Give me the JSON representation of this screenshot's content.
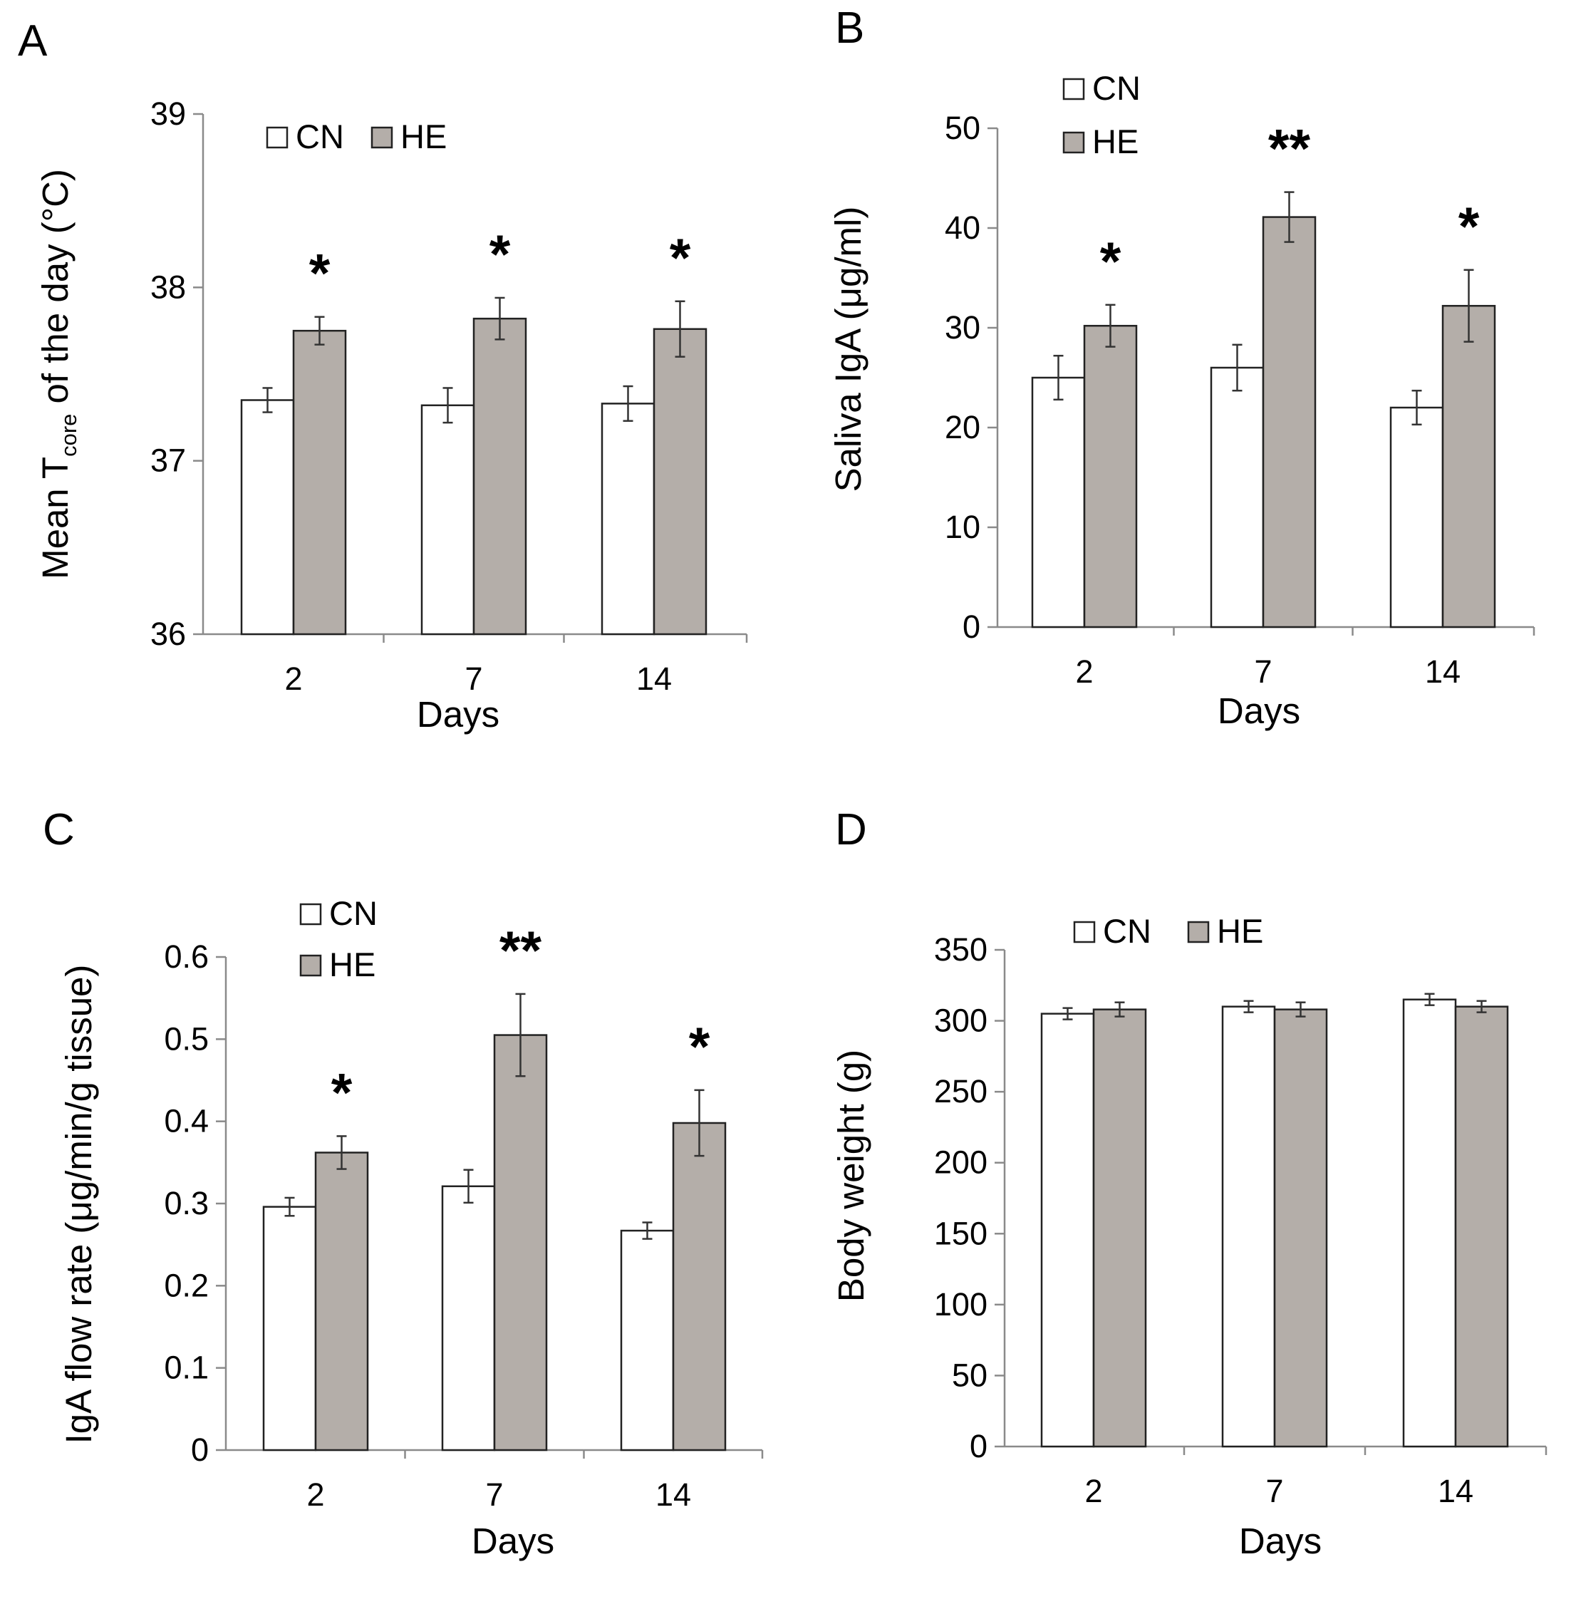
{
  "figure": {
    "description_panels": [
      "A",
      "B",
      "C",
      "D"
    ]
  },
  "colors": {
    "CN": "#ffffff",
    "HE": "#b4aea9",
    "axis": "#8a8a8a",
    "outline": "#222222"
  },
  "chart_data": [
    {
      "panel": "A",
      "type": "bar",
      "categories": [
        "2",
        "7",
        "14"
      ],
      "series": [
        {
          "name": "CN",
          "values": [
            37.35,
            37.32,
            37.33
          ],
          "errors": [
            0.07,
            0.1,
            0.1
          ]
        },
        {
          "name": "HE",
          "values": [
            37.75,
            37.82,
            37.76
          ],
          "errors": [
            0.08,
            0.12,
            0.16
          ]
        }
      ],
      "significance": [
        "*",
        "*",
        "*"
      ],
      "xlabel": "Days",
      "ylabel": {
        "prefix": "Mean T",
        "sub": "core",
        "suffix": "of the day (°C)"
      },
      "ylim": [
        36,
        39
      ],
      "yticks": [
        "36",
        "37",
        "38",
        "39"
      ],
      "legend": {
        "layout": "horizontal",
        "position": "top-left"
      }
    },
    {
      "panel": "B",
      "type": "bar",
      "categories": [
        "2",
        "7",
        "14"
      ],
      "series": [
        {
          "name": "CN",
          "values": [
            25,
            26,
            22
          ],
          "errors": [
            2.2,
            2.3,
            1.7
          ]
        },
        {
          "name": "HE",
          "values": [
            30.2,
            41.1,
            32.2
          ],
          "errors": [
            2.1,
            2.5,
            3.6
          ]
        }
      ],
      "significance": [
        "*",
        "**",
        "*"
      ],
      "xlabel": "Days",
      "ylabel": "Saliva IgA (μg/ml)",
      "ylim": [
        0,
        50
      ],
      "yticks": [
        "0",
        "10",
        "20",
        "30",
        "40",
        "50"
      ],
      "legend": {
        "layout": "vertical",
        "position": "top-left"
      }
    },
    {
      "panel": "C",
      "type": "bar",
      "categories": [
        "2",
        "7",
        "14"
      ],
      "series": [
        {
          "name": "CN",
          "values": [
            0.296,
            0.321,
            0.267
          ],
          "errors": [
            0.011,
            0.02,
            0.01
          ]
        },
        {
          "name": "HE",
          "values": [
            0.362,
            0.505,
            0.398
          ],
          "errors": [
            0.02,
            0.05,
            0.04
          ]
        }
      ],
      "significance": [
        "*",
        "**",
        "*"
      ],
      "xlabel": "Days",
      "ylabel": "IgA flow rate (μg/min/g tissue)",
      "ylim": [
        0,
        0.6
      ],
      "yticks": [
        "0",
        "0.1",
        "0.2",
        "0.3",
        "0.4",
        "0.5",
        "0.6"
      ],
      "legend": {
        "layout": "vertical",
        "position": "top-left"
      }
    },
    {
      "panel": "D",
      "type": "bar",
      "categories": [
        "2",
        "7",
        "14"
      ],
      "series": [
        {
          "name": "CN",
          "values": [
            305,
            310,
            315
          ],
          "errors": [
            4,
            4,
            4
          ]
        },
        {
          "name": "HE",
          "values": [
            308,
            308,
            310
          ],
          "errors": [
            5,
            5,
            4
          ]
        }
      ],
      "significance": [
        "",
        "",
        ""
      ],
      "xlabel": "Days",
      "ylabel": "Body weight (g)",
      "ylim": [
        0,
        350
      ],
      "yticks": [
        "0",
        "50",
        "100",
        "150",
        "200",
        "250",
        "300",
        "350"
      ],
      "legend": {
        "layout": "horizontal",
        "position": "top"
      }
    }
  ]
}
